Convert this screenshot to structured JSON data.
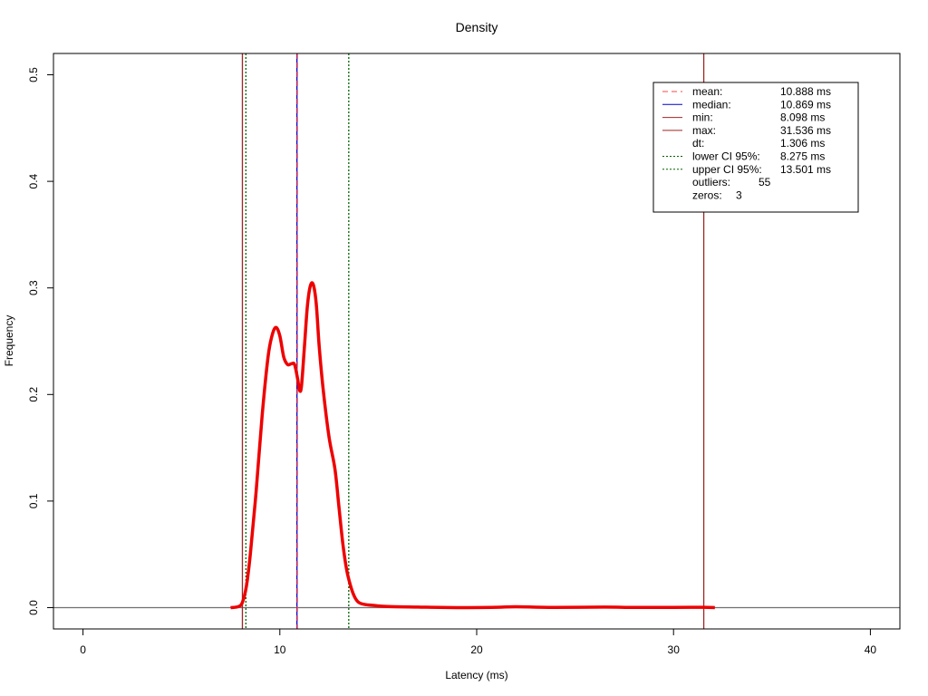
{
  "chart_data": {
    "type": "line",
    "title": "Density",
    "xlabel": "Latency (ms)",
    "ylabel": "Frequency",
    "xlim": [
      -1.5,
      41.5
    ],
    "ylim": [
      -0.02,
      0.52
    ],
    "x_ticks": [
      0,
      10,
      20,
      30,
      40
    ],
    "y_ticks": [
      0.0,
      0.1,
      0.2,
      0.3,
      0.4,
      0.5
    ],
    "x_tick_labels": [
      "0",
      "10",
      "20",
      "30",
      "40"
    ],
    "y_tick_labels": [
      "0.0",
      "0.1",
      "0.2",
      "0.3",
      "0.4",
      "0.5"
    ],
    "grid": false,
    "series": [
      {
        "color": "#ee0000",
        "x": [
          7.5,
          7.9,
          8.1,
          8.3,
          8.5,
          8.8,
          9.1,
          9.4,
          9.6,
          9.8,
          10.0,
          10.2,
          10.4,
          10.6,
          10.75,
          10.9,
          11.0,
          11.1,
          11.25,
          11.4,
          11.55,
          11.7,
          11.85,
          12.0,
          12.2,
          12.5,
          12.8,
          13.0,
          13.2,
          13.4,
          13.6,
          13.8,
          14.0,
          14.3,
          14.8,
          15.5,
          17,
          19,
          21,
          22,
          24,
          26.5,
          28,
          30,
          31.5,
          32.1
        ],
        "y": [
          0.0,
          0.001,
          0.005,
          0.02,
          0.05,
          0.11,
          0.18,
          0.235,
          0.255,
          0.263,
          0.255,
          0.235,
          0.228,
          0.229,
          0.228,
          0.215,
          0.204,
          0.208,
          0.245,
          0.283,
          0.302,
          0.303,
          0.285,
          0.245,
          0.205,
          0.16,
          0.13,
          0.095,
          0.06,
          0.035,
          0.02,
          0.01,
          0.005,
          0.003,
          0.002,
          0.001,
          0.0005,
          0.0,
          0.0003,
          0.0008,
          0.0002,
          0.0005,
          0.0002,
          0.0002,
          0.0003,
          0.0
        ]
      }
    ],
    "reference_lines": {
      "hline": {
        "y": 0.0,
        "color": "#707070"
      },
      "vlines": [
        {
          "x": 8.098,
          "color": "#a02424",
          "style": "solid"
        },
        {
          "x": 8.275,
          "color": "#006400",
          "style": "dotted"
        },
        {
          "x": 10.869,
          "color": "#0000cc",
          "style": "solid"
        },
        {
          "x": 10.888,
          "color": "#ff4444",
          "style": "dashed"
        },
        {
          "x": 13.501,
          "color": "#006400",
          "style": "dotted"
        },
        {
          "x": 31.536,
          "color": "#a02424",
          "style": "solid"
        }
      ]
    },
    "legend": {
      "position": "top-right",
      "rows": [
        {
          "label": "mean:",
          "value": "10.888 ms",
          "line_color": "#ff4444",
          "line_style": "dashed"
        },
        {
          "label": "median:",
          "value": "10.869 ms",
          "line_color": "#0000cc",
          "line_style": "solid"
        },
        {
          "label": "min:",
          "value": "8.098 ms",
          "line_color": "#a02424",
          "line_style": "solid"
        },
        {
          "label": "max:",
          "value": "31.536 ms",
          "line_color": "#a02424",
          "line_style": "solid"
        },
        {
          "label": "dt:",
          "value": "1.306 ms",
          "line_color": "",
          "line_style": "none"
        },
        {
          "label": "lower CI 95%:",
          "value": "8.275 ms",
          "line_color": "#006400",
          "line_style": "dotted"
        },
        {
          "label": "upper CI 95%:",
          "value": "13.501 ms",
          "line_color": "#006400",
          "line_style": "dotted"
        },
        {
          "label": "outliers:",
          "value": "55",
          "line_color": "",
          "line_style": "none"
        },
        {
          "label": "zeros:",
          "value": "3",
          "line_color": "",
          "line_style": "none"
        }
      ]
    }
  }
}
